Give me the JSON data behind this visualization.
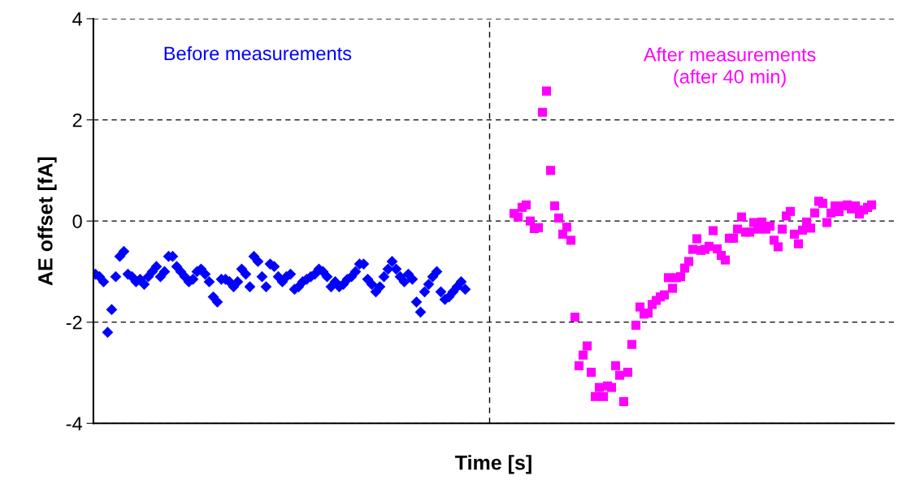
{
  "chart_data": {
    "type": "scatter",
    "xlabel": "Time [s]",
    "ylabel": "AE offset [fA]",
    "annotations": [
      "Before measurements",
      "After measurements\n(after 40 min)"
    ],
    "categories": [
      null,
      null,
      null,
      null,
      null,
      null,
      null,
      null,
      null,
      null,
      null,
      null,
      null,
      null,
      null,
      null,
      null,
      null,
      null,
      null,
      null,
      null,
      null,
      null,
      null,
      null,
      null,
      null,
      null,
      null,
      null,
      null,
      null,
      null,
      null,
      null,
      null,
      null,
      null,
      null,
      null,
      null,
      null,
      null,
      null,
      null,
      null,
      null,
      null,
      null,
      null,
      null,
      null,
      null,
      null,
      null,
      null,
      null,
      null,
      null,
      null,
      null,
      null,
      null,
      null,
      null,
      null,
      null,
      null,
      null,
      null,
      null,
      null,
      null,
      null,
      null,
      null,
      null,
      null,
      null,
      null,
      null,
      null,
      null,
      null,
      null,
      null,
      null,
      null,
      null,
      null,
      null,
      null,
      null,
      null,
      null,
      null,
      null,
      null,
      null,
      null,
      null,
      null,
      null,
      null,
      null,
      null,
      null,
      null,
      null,
      null,
      null,
      null,
      null,
      null,
      null,
      null,
      null,
      null,
      null,
      null,
      null,
      null,
      null,
      null,
      null,
      null,
      null,
      null,
      null,
      null,
      null,
      null,
      null,
      null,
      null,
      null,
      null,
      null,
      null,
      null,
      null,
      null,
      null,
      null,
      null,
      null,
      null,
      null,
      null,
      null,
      null,
      null,
      null,
      null,
      null,
      null,
      null,
      null,
      null,
      null,
      null,
      null,
      null,
      null,
      null,
      null,
      null,
      null,
      null,
      null,
      null,
      null,
      null,
      null,
      null,
      null,
      null,
      null,
      null,
      null,
      null,
      null,
      null,
      null,
      null,
      null,
      null,
      null,
      null,
      null,
      null,
      null,
      null,
      null,
      null,
      null
    ],
    "series": [
      {
        "color": "#0000ff",
        "marker": "diamond",
        "values": [
          -1.05,
          -1.1,
          -1.2,
          -2.2,
          -1.75,
          -1.1,
          -0.7,
          -0.6,
          -1.05,
          -1.1,
          -1.2,
          -1.15,
          -1.25,
          -1.1,
          -1.0,
          -0.9,
          -1.1,
          -1.0,
          -0.7,
          -0.7,
          -0.9,
          -1.0,
          -1.1,
          -1.2,
          -1.15,
          -1.0,
          -0.95,
          -1.05,
          -1.2,
          -1.5,
          -1.6,
          -1.15,
          -1.15,
          -1.2,
          -1.3,
          -1.2,
          -0.95,
          -1.05,
          -1.3,
          -0.7,
          -0.8,
          -1.1,
          -1.3,
          -0.85,
          -0.9,
          -1.1,
          -1.2,
          -1.1,
          -1.05,
          -1.35,
          -1.3,
          -1.2,
          -1.15,
          -1.1,
          -1.05,
          -0.95,
          -1.0,
          -1.1,
          -1.3,
          -1.2,
          -1.3,
          -1.25,
          -1.15,
          -1.1,
          -1.0,
          -0.85,
          -0.85,
          -1.15,
          -1.25,
          -1.4,
          -1.3,
          -1.1,
          -0.95,
          -0.8,
          -0.95,
          -1.1,
          -1.2,
          -1.05,
          -1.15,
          -1.6,
          -1.8,
          -1.4,
          -1.25,
          -1.1,
          -1.0,
          -1.4,
          -1.55,
          -1.5,
          -1.4,
          -1.3,
          -1.2,
          -1.35,
          null,
          null,
          null,
          null,
          null,
          null,
          null,
          null,
          null,
          null,
          null,
          null,
          null,
          null,
          null,
          null,
          null,
          null,
          null,
          null,
          null,
          null,
          null,
          null,
          null,
          null,
          null,
          null,
          null,
          null,
          null,
          null,
          null,
          null,
          null,
          null,
          null,
          null,
          null,
          null,
          null,
          null,
          null,
          null,
          null,
          null,
          null,
          null,
          null,
          null,
          null,
          null,
          null,
          null,
          null,
          null,
          null,
          null,
          null,
          null,
          null,
          null,
          null,
          null,
          null,
          null,
          null,
          null,
          null,
          null,
          null,
          null,
          null,
          null,
          null,
          null,
          null,
          null,
          null,
          null,
          null,
          null,
          null,
          null,
          null,
          null,
          null,
          null,
          null,
          null,
          null,
          null,
          null,
          null,
          null,
          null,
          null,
          null,
          null,
          null,
          null,
          null,
          null,
          null,
          null
        ]
      },
      {
        "color": "#ff00ff",
        "marker": "square",
        "values": [
          null,
          null,
          null,
          null,
          null,
          null,
          null,
          null,
          null,
          null,
          null,
          null,
          null,
          null,
          null,
          null,
          null,
          null,
          null,
          null,
          null,
          null,
          null,
          null,
          null,
          null,
          null,
          null,
          null,
          null,
          null,
          null,
          null,
          null,
          null,
          null,
          null,
          null,
          null,
          null,
          null,
          null,
          null,
          null,
          null,
          null,
          null,
          null,
          null,
          null,
          null,
          null,
          null,
          null,
          null,
          null,
          null,
          null,
          null,
          null,
          null,
          null,
          null,
          null,
          null,
          null,
          null,
          null,
          null,
          null,
          null,
          null,
          null,
          null,
          null,
          null,
          null,
          null,
          null,
          null,
          null,
          null,
          null,
          null,
          null,
          null,
          null,
          null,
          null,
          null,
          null,
          null,
          null,
          null,
          null,
          null,
          null,
          null,
          null,
          null,
          null,
          null,
          null,
          0.15,
          0.08,
          0.27,
          0.32,
          0.0,
          -0.15,
          -0.13,
          2.15,
          2.57,
          1.0,
          0.3,
          0.06,
          -0.26,
          -0.12,
          -0.38,
          -1.9,
          -2.86,
          -2.65,
          -2.47,
          -2.99,
          -3.47,
          -3.29,
          -3.47,
          -3.26,
          -3.29,
          -2.86,
          -3.05,
          -3.57,
          -2.99,
          -2.44,
          -2.06,
          -1.7,
          -1.84,
          -1.82,
          -1.65,
          -1.57,
          -1.5,
          -1.46,
          -1.12,
          -1.33,
          -1.12,
          -1.1,
          -0.93,
          -0.8,
          -0.56,
          -0.35,
          -0.58,
          -0.56,
          -0.5,
          -0.19,
          -0.55,
          -0.68,
          -0.77,
          -0.34,
          -0.34,
          -0.16,
          0.08,
          -0.22,
          -0.22,
          -0.03,
          -0.16,
          -0.02,
          -0.16,
          -0.1,
          -0.38,
          -0.51,
          -0.16,
          0.1,
          0.19,
          -0.26,
          -0.45,
          -0.18,
          -0.02,
          -0.14,
          0.16,
          0.39,
          0.35,
          -0.03,
          0.16,
          0.3,
          0.19,
          0.3,
          0.32,
          0.24,
          0.3,
          0.14,
          0.22,
          0.27,
          0.32,
          null,
          null,
          null,
          null,
          null
        ]
      }
    ],
    "ylim": [
      -4,
      4
    ],
    "yticks": [
      -4,
      -2,
      0,
      2,
      4
    ],
    "grid": "y",
    "tick_labels": "y",
    "legend": false
  }
}
